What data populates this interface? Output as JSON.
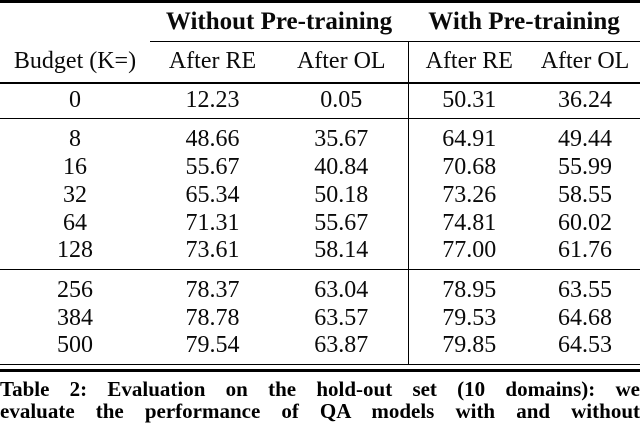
{
  "colors": {
    "background": "#ffffff",
    "text": "#0a0a0a",
    "rule": "#000000"
  },
  "table": {
    "span_headers": {
      "without": "Without Pre-training",
      "with": "With Pre-training"
    },
    "column_headers": {
      "budget": "Budget (K=)",
      "wo_re": "After RE",
      "wo_ol": "After OL",
      "w_re": "After RE",
      "w_ol": "After OL"
    },
    "rows": [
      {
        "budget": "0",
        "wo_re": "12.23",
        "wo_ol": "0.05",
        "w_re": "50.31",
        "w_ol": "36.24"
      },
      {
        "budget": "8",
        "wo_re": "48.66",
        "wo_ol": "35.67",
        "w_re": "64.91",
        "w_ol": "49.44"
      },
      {
        "budget": "16",
        "wo_re": "55.67",
        "wo_ol": "40.84",
        "w_re": "70.68",
        "w_ol": "55.99"
      },
      {
        "budget": "32",
        "wo_re": "65.34",
        "wo_ol": "50.18",
        "w_re": "73.26",
        "w_ol": "58.55"
      },
      {
        "budget": "64",
        "wo_re": "71.31",
        "wo_ol": "55.67",
        "w_re": "74.81",
        "w_ol": "60.02"
      },
      {
        "budget": "128",
        "wo_re": "73.61",
        "wo_ol": "58.14",
        "w_re": "77.00",
        "w_ol": "61.76"
      },
      {
        "budget": "256",
        "wo_re": "78.37",
        "wo_ol": "63.04",
        "w_re": "78.95",
        "w_ol": "63.55"
      },
      {
        "budget": "384",
        "wo_re": "78.78",
        "wo_ol": "63.57",
        "w_re": "79.53",
        "w_ol": "64.68"
      },
      {
        "budget": "500",
        "wo_re": "79.54",
        "wo_ol": "63.87",
        "w_re": "79.85",
        "w_ol": "64.53"
      }
    ],
    "caption": {
      "line1": "Table 2: Evaluation on the hold-out set (10 domains): we",
      "line2": "evaluate the performance of QA models with and without"
    }
  }
}
